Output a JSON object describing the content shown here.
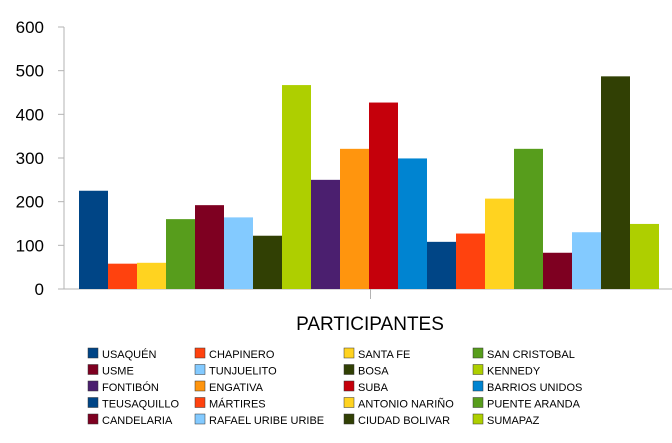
{
  "chart_data": {
    "type": "bar",
    "categories": [
      "PARTICIPANTES"
    ],
    "xlabel": "PARTICIPANTES",
    "ylabel": "",
    "title": "",
    "ylim": [
      0,
      600
    ],
    "yticks": [
      0,
      100,
      200,
      300,
      400,
      500,
      600
    ],
    "grid": false,
    "legend_position": "bottom",
    "series": [
      {
        "name": "USAQUÉN",
        "value": 225,
        "color": "#004586"
      },
      {
        "name": "CHAPINERO",
        "value": 58,
        "color": "#ff420e"
      },
      {
        "name": "SANTA FE",
        "value": 60,
        "color": "#ffd320"
      },
      {
        "name": "SAN CRISTOBAL",
        "value": 160,
        "color": "#579d1c"
      },
      {
        "name": "USME",
        "value": 192,
        "color": "#7e0021"
      },
      {
        "name": "TUNJUELITO",
        "value": 164,
        "color": "#83caff"
      },
      {
        "name": "BOSA",
        "value": 122,
        "color": "#314004"
      },
      {
        "name": "KENNEDY",
        "value": 467,
        "color": "#aecf00"
      },
      {
        "name": "FONTIBÓN",
        "value": 250,
        "color": "#4b1f6f"
      },
      {
        "name": "ENGATIVA",
        "value": 321,
        "color": "#ff950e"
      },
      {
        "name": "SUBA",
        "value": 427,
        "color": "#c5000b"
      },
      {
        "name": "BARRIOS UNIDOS",
        "value": 299,
        "color": "#0084d1"
      },
      {
        "name": "TEUSAQUILLO",
        "value": 108,
        "color": "#004586"
      },
      {
        "name": "MÁRTIRES",
        "value": 127,
        "color": "#ff420e"
      },
      {
        "name": "ANTONIO NARIÑO",
        "value": 207,
        "color": "#ffd320"
      },
      {
        "name": "PUENTE ARANDA",
        "value": 321,
        "color": "#579d1c"
      },
      {
        "name": "CANDELARIA",
        "value": 83,
        "color": "#7e0021"
      },
      {
        "name": "RAFAEL URIBE URIBE",
        "value": 130,
        "color": "#83caff"
      },
      {
        "name": "CIUDAD BOLIVAR",
        "value": 487,
        "color": "#314004"
      },
      {
        "name": "SUMAPAZ",
        "value": 149,
        "color": "#aecf00"
      }
    ]
  }
}
